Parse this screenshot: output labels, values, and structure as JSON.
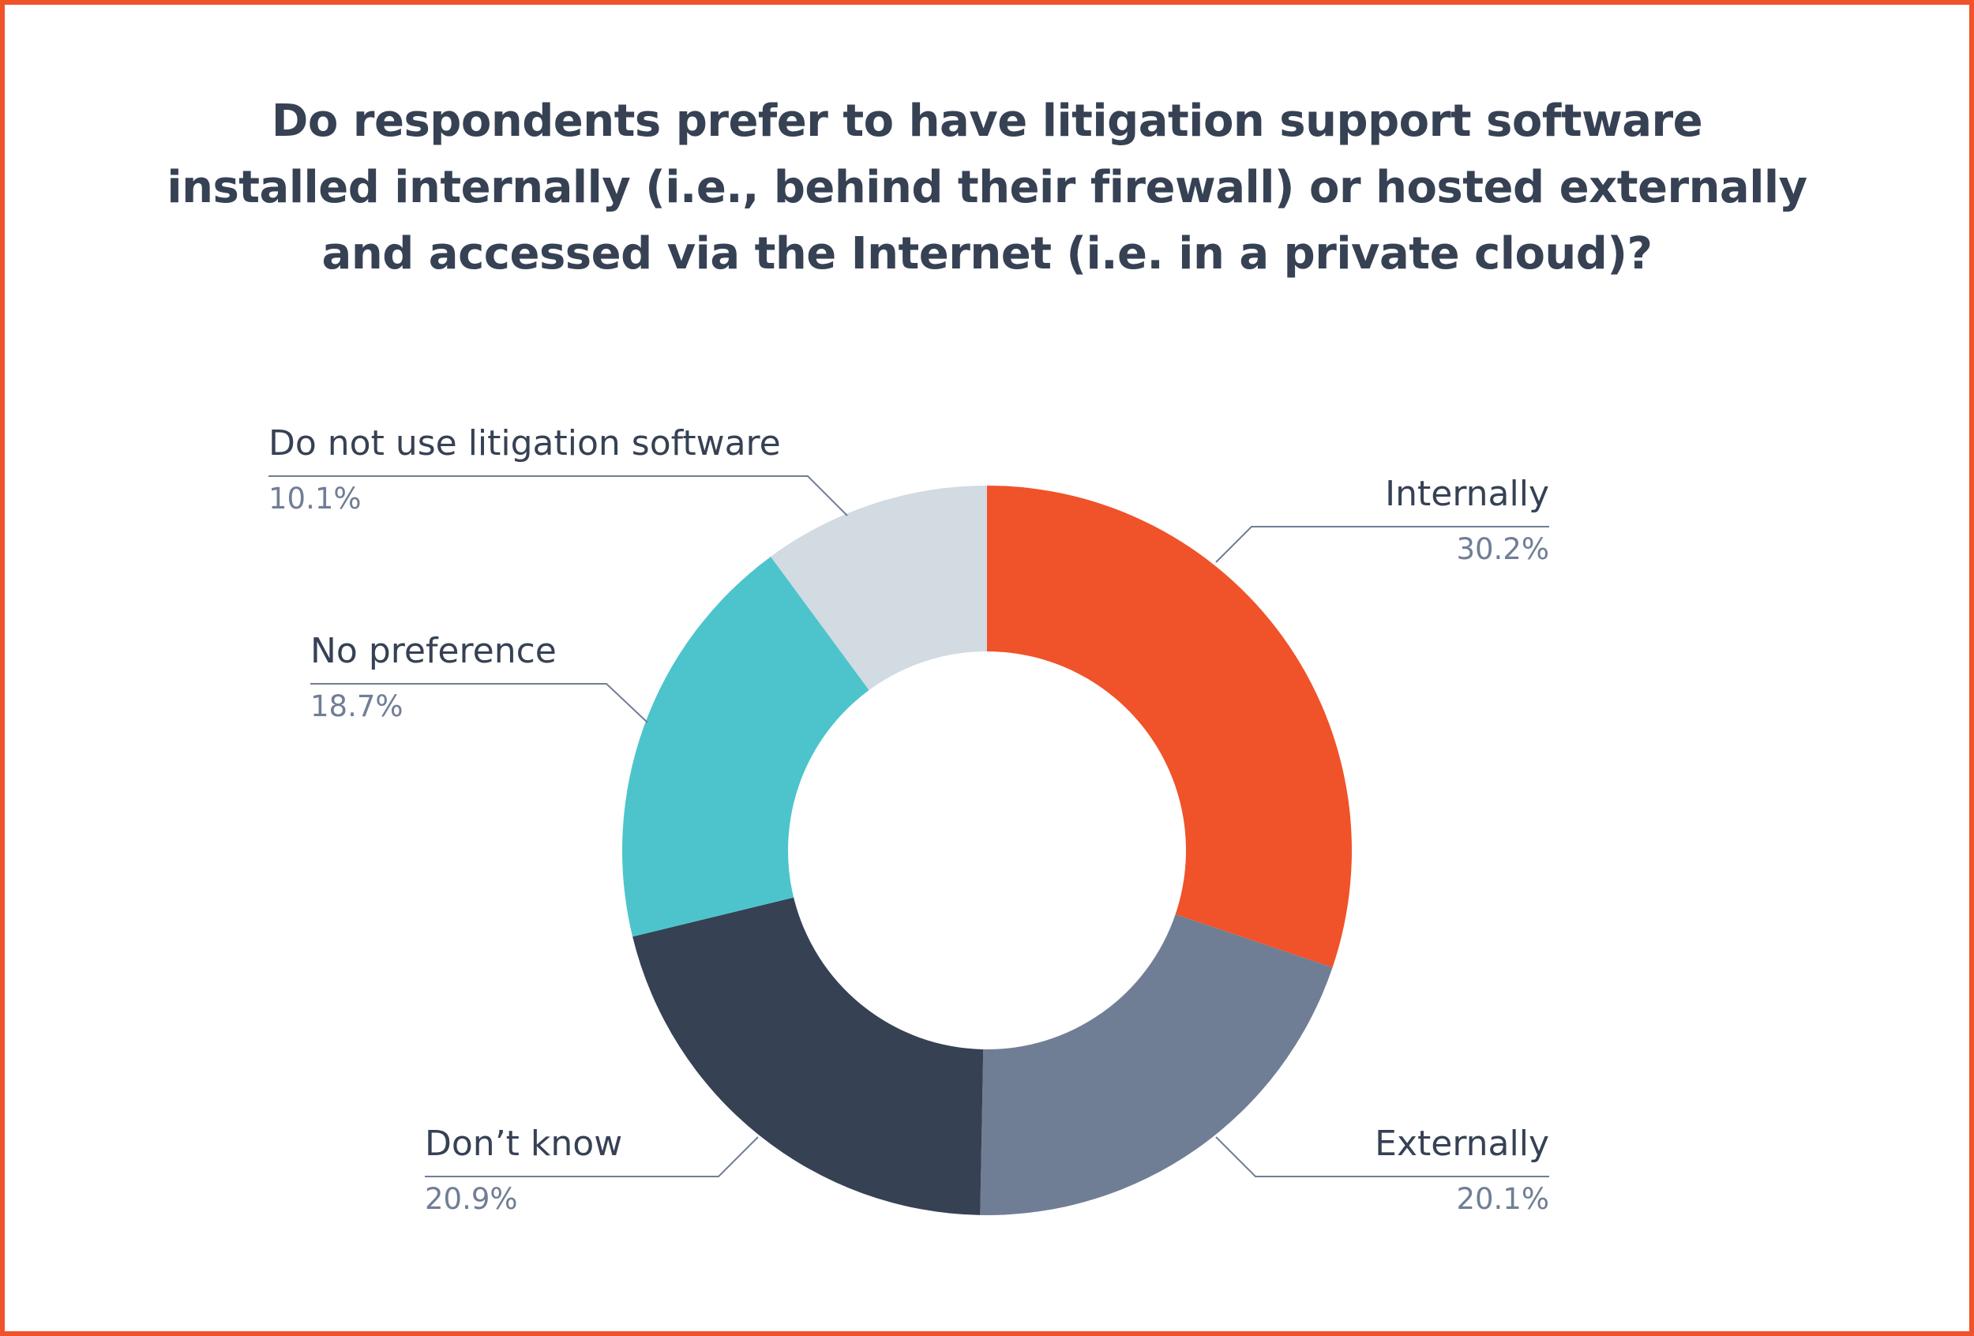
{
  "title": {
    "lines": [
      "Do respondents prefer to have litigation support software",
      "installed internally (i.e., behind their firewall) or hosted externally",
      "and accessed via the Internet (i.e. in a private cloud)?"
    ]
  },
  "colors": {
    "border": "#F0522A",
    "title": "#364154",
    "label": "#364154",
    "percent": "#707E95",
    "leader": "#707E95"
  },
  "labels": {
    "internally": {
      "name": "Internally",
      "pct": "30.2%"
    },
    "externally": {
      "name": "Externally",
      "pct": "20.1%"
    },
    "dont_know": {
      "name": "Don’t know",
      "pct": "20.9%"
    },
    "no_preference": {
      "name": "No preference",
      "pct": "18.7%"
    },
    "do_not_use": {
      "name": "Do not use litigation software",
      "pct": "10.1%"
    }
  },
  "chart_data": {
    "type": "pie",
    "subtype": "donut",
    "title": "Do respondents prefer to have litigation support software installed internally (i.e., behind their firewall) or hosted externally and accessed via the Internet (i.e. in a private cloud)?",
    "categories": [
      "Internally",
      "Externally",
      "Don’t know",
      "No preference",
      "Do not use litigation software"
    ],
    "values": [
      30.2,
      20.1,
      20.9,
      18.7,
      10.1
    ],
    "unit": "%",
    "colors": [
      "#F0522A",
      "#707E95",
      "#364154",
      "#4DC4CC",
      "#D2DAE2"
    ],
    "start_angle_deg": 0,
    "direction": "clockwise",
    "legend": "none (callout labels with leader lines)"
  }
}
